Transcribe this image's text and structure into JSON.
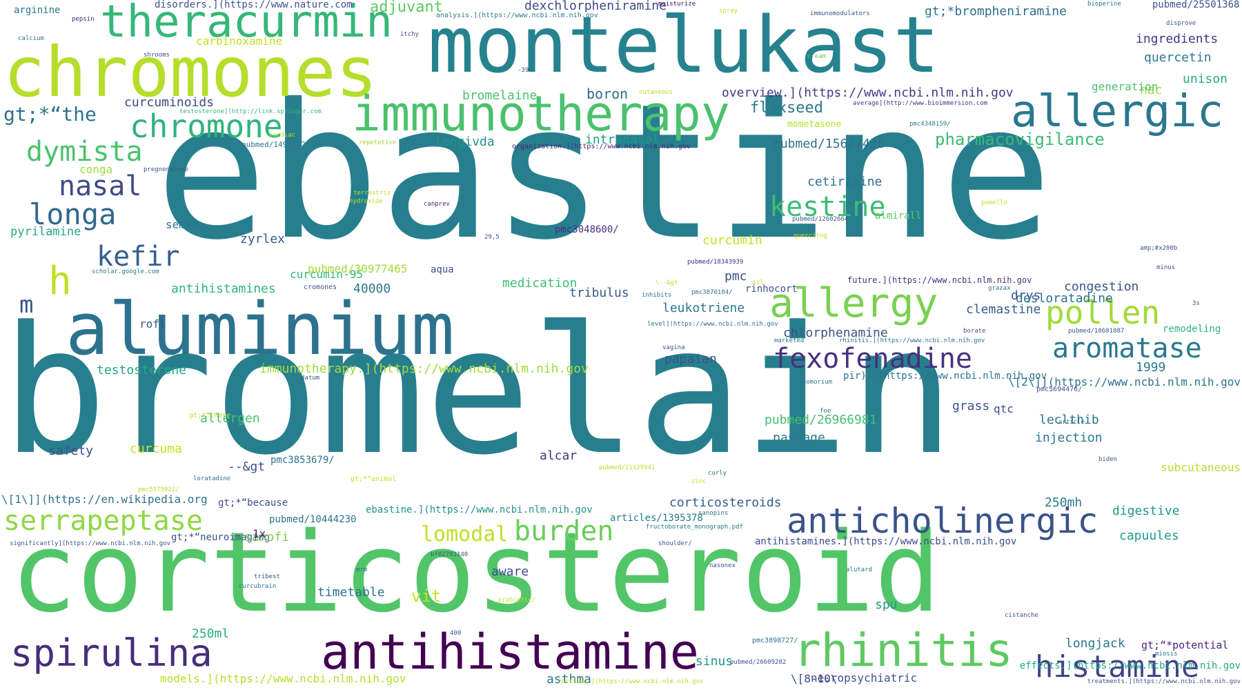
{
  "words": [
    {
      "text": "ebastine",
      "color": "#277f8e"
    },
    {
      "text": "bromelain",
      "color": "#277f8e"
    },
    {
      "text": "corticosteroid",
      "color": "#52c569"
    },
    {
      "text": "montelukast",
      "color": "#26828e"
    },
    {
      "text": "aluminium",
      "color": "#2c728e"
    },
    {
      "text": "chromones",
      "color": "#b5de2b"
    },
    {
      "text": "immunotherapy",
      "color": "#4ac16d"
    },
    {
      "text": "antihistamine",
      "color": "#440154"
    },
    {
      "text": "theracurmin",
      "color": "#35b779"
    },
    {
      "text": "allergic",
      "color": "#2a788e"
    },
    {
      "text": "rhinitis",
      "color": "#5ec962"
    },
    {
      "text": "anticholinergic",
      "color": "#3b528b"
    },
    {
      "text": "spirulina",
      "color": "#472d7b"
    },
    {
      "text": "allergy",
      "color": "#7ad151"
    },
    {
      "text": "chromone",
      "color": "#2fb47c"
    },
    {
      "text": "histamine",
      "color": "#414487"
    },
    {
      "text": "fexofenadine",
      "color": "#46327e"
    },
    {
      "text": "serrapeptase",
      "color": "#8fd744"
    },
    {
      "text": "pollen",
      "color": "#a0da39"
    },
    {
      "text": "aromatase",
      "color": "#2a788e"
    },
    {
      "text": "kestine",
      "color": "#3dbc74"
    },
    {
      "text": "longa",
      "color": "#31688e"
    },
    {
      "text": "dymista",
      "color": "#4ac16d"
    },
    {
      "text": "nasal",
      "color": "#3e4a89"
    },
    {
      "text": "burden",
      "color": "#6ccd5a"
    },
    {
      "text": "kefir",
      "color": "#355f8d"
    },
    {
      "text": "h",
      "color": "#c2df23"
    },
    {
      "text": "m",
      "color": "#38588c"
    },
    {
      "text": "lomodal",
      "color": "#c2df23"
    },
    {
      "text": "gt;*“the",
      "color": "#2c728e"
    },
    {
      "text": "pharmacovigilance",
      "color": "#3bbb75"
    },
    {
      "text": "flaxseed",
      "color": "#2a788e"
    },
    {
      "text": "adjuvant",
      "color": "#5ec962"
    },
    {
      "text": "dexchlorpheniramine",
      "color": "#3e4a89"
    },
    {
      "text": "gt;*brompheniramine",
      "color": "#2d708e"
    },
    {
      "text": "ingredients",
      "color": "#453581"
    },
    {
      "text": "quercetin",
      "color": "#2a788e"
    },
    {
      "text": "unison",
      "color": "#25ac82"
    },
    {
      "text": "nac",
      "color": "#9bd93c"
    },
    {
      "text": "boron",
      "color": "#2e6e8e"
    },
    {
      "text": "bromelaine",
      "color": "#4ac16d"
    },
    {
      "text": "overview.](https://www.ncbi.nlm.nih.gov",
      "color": "#443a83"
    },
    {
      "text": "curcuminoids",
      "color": "#3e4a89"
    },
    {
      "text": "longivda",
      "color": "#21918c"
    },
    {
      "text": "intranasal",
      "color": "#1f988b"
    },
    {
      "text": "pubmed/15627436",
      "color": "#2d708e"
    },
    {
      "text": "cetirizine",
      "color": "#2c728e"
    },
    {
      "text": "zyrlex",
      "color": "#38588c"
    },
    {
      "text": "pyrilamine",
      "color": "#22a785"
    },
    {
      "text": "antihistamines",
      "color": "#2fb47c"
    },
    {
      "text": "40000",
      "color": "#2a788e"
    },
    {
      "text": "medication",
      "color": "#3dbc74"
    },
    {
      "text": "tribulus",
      "color": "#365c8d"
    },
    {
      "text": "pmc",
      "color": "#3b528b"
    },
    {
      "text": "leukotriene",
      "color": "#2a788e"
    },
    {
      "text": "chlorphenamine",
      "color": "#3b528b"
    },
    {
      "text": "congestion",
      "color": "#3b528b"
    },
    {
      "text": "drys",
      "color": "#39568c"
    },
    {
      "text": "clemastine",
      "color": "#365c8d"
    },
    {
      "text": "testosterone",
      "color": "#22a785"
    },
    {
      "text": "papaian",
      "color": "#3b528b"
    },
    {
      "text": "immunotherapy.](https://www.ncbi.nlm.nih.gov",
      "color": "#a0da39"
    },
    {
      "text": "allergen",
      "color": "#4ac16d"
    },
    {
      "text": "safety",
      "color": "#3b528b"
    },
    {
      "text": "--&gt",
      "color": "#3b528b"
    },
    {
      "text": "pubmed/26966981",
      "color": "#44bf70"
    },
    {
      "text": "passage",
      "color": "#2a788e"
    },
    {
      "text": "grass",
      "color": "#3b528b"
    },
    {
      "text": "qtc",
      "color": "#3e4a89"
    },
    {
      "text": "leclthib",
      "color": "#2a788e"
    },
    {
      "text": "injection",
      "color": "#2a788e"
    },
    {
      "text": "digestive",
      "color": "#1f988b"
    },
    {
      "text": "capuules",
      "color": "#1f988b"
    },
    {
      "text": "timetable",
      "color": "#2c728e"
    },
    {
      "text": "vit",
      "color": "#c8e020"
    },
    {
      "text": "aware",
      "color": "#3e4a89"
    },
    {
      "text": "asthma",
      "color": "#2a788e"
    },
    {
      "text": "spu",
      "color": "#1f988b"
    },
    {
      "text": "250ml",
      "color": "#25ac82"
    },
    {
      "text": "longjack",
      "color": "#2a788e"
    },
    {
      "text": "gt;“*potential",
      "color": "#482677"
    },
    {
      "text": "neuropsychiatric",
      "color": "#3b528b"
    },
    {
      "text": "models.](https://www.ncbi.nlm.nih.gov",
      "color": "#b5de2b"
    },
    {
      "text": "gt;*“because",
      "color": "#3e4a89"
    },
    {
      "text": "gt;*“neuroimaging",
      "color": "#3b528b"
    },
    {
      "text": "pubmed/10444230",
      "color": "#2c728e"
    },
    {
      "text": "articles/1395378",
      "color": "#2a788e"
    },
    {
      "text": "ebastine.](https://www.ncbi.nlm.nih.gov",
      "color": "#21918c"
    },
    {
      "text": "antihistamines.](https://www.ncbi.nlm.nih.gov",
      "color": "#3e4a89"
    },
    {
      "text": "future.](https://www.ncbi.nlm.nih.gov",
      "color": "#46327e"
    },
    {
      "text": "pir).](https://www.ncbi.nlm.nih.gov",
      "color": "#2c728e"
    },
    {
      "text": "1999",
      "color": "#2a788e"
    },
    {
      "text": "remodeling",
      "color": "#2fb47c"
    },
    {
      "text": "rinhocort",
      "color": "#3b528b"
    },
    {
      "text": "almirall",
      "color": "#5ec962"
    },
    {
      "text": "mometasone",
      "color": "#b5de2b"
    },
    {
      "text": "disorders.](https://www.nature.com",
      "color": "#3b528b"
    },
    {
      "text": "arginine",
      "color": "#2c728e"
    },
    {
      "text": "carbinoxamine",
      "color": "#c2df23"
    },
    {
      "text": "conga",
      "color": "#a0da39"
    },
    {
      "text": "semen",
      "color": "#2c728e"
    },
    {
      "text": "curcumin-95",
      "color": "#2fb47c"
    },
    {
      "text": "pubmed/30977465",
      "color": "#a0da39"
    },
    {
      "text": "curcumin",
      "color": "#c2df23"
    },
    {
      "text": "desloratadine",
      "color": "#2c728e"
    },
    {
      "text": "generation",
      "color": "#4ac16d"
    },
    {
      "text": "corticosteroids",
      "color": "#355f8d"
    },
    {
      "text": "alcar",
      "color": "#46327e"
    },
    {
      "text": "curcuma",
      "color": "#c8e020"
    },
    {
      "text": "sanofi",
      "color": "#7ad151"
    },
    {
      "text": "sinus",
      "color": "#1f988b"
    },
    {
      "text": "250mh",
      "color": "#2a788e"
    },
    {
      "text": "subcutaneous",
      "color": "#b5de2b"
    },
    {
      "text": "rofl",
      "color": "#3b528b"
    },
    {
      "text": "pmc3853679/",
      "color": "#2c728e"
    },
    {
      "text": "1x",
      "color": "#482677"
    },
    {
      "text": "pmc3048600/",
      "color": "#472d7b"
    },
    {
      "text": "\\[1\\]](https://en.wikipedia.org",
      "color": "#2c728e"
    },
    {
      "text": "\\[2\\]](https://www.ncbi.nlm.nih.gov",
      "color": "#2c728e"
    },
    {
      "text": "effects.](https://www.ncbi.nlm.nih.gov",
      "color": "#22a785"
    },
    {
      "text": "\\[8-10\\",
      "color": "#3e4a89"
    },
    {
      "text": "pubmed/25501368",
      "color": "#3b528b"
    },
    {
      "text": "moisturize",
      "color": "#440154"
    },
    {
      "text": "bioperine",
      "color": "#2c728e"
    },
    {
      "text": "immunomodulators",
      "color": "#3b528b"
    },
    {
      "text": "spray",
      "color": "#c8e020"
    },
    {
      "text": "pepsin",
      "color": "#482677"
    },
    {
      "text": "calcium",
      "color": "#2c728e"
    },
    {
      "text": "shrooms",
      "color": "#3b528b"
    },
    {
      "text": "itchy",
      "color": "#3b528b"
    },
    {
      "text": "analysis.](https://www.ncbi.nlm.nih.gov",
      "color": "#2a788e"
    },
    {
      "text": "cream",
      "color": "#5ec962"
    },
    {
      "text": "-39",
      "color": "#3b528b"
    },
    {
      "text": "cutaneous",
      "color": "#b5de2b"
    },
    {
      "text": "testosterone](http://link.springer.com",
      "color": "#35b779"
    },
    {
      "text": "pubmed/14984820",
      "color": "#2a788e"
    },
    {
      "text": "repetetive",
      "color": "#a0da39"
    },
    {
      "text": "cardiac",
      "color": "#b5de2b"
    },
    {
      "text": "organization.](https://www.ncbi.nlm.nih.gov",
      "color": "#482677"
    },
    {
      "text": "pmc4348159/",
      "color": "#2a788e"
    },
    {
      "text": "average](http://www.bioimmersion.com",
      "color": "#46327e"
    },
    {
      "text": "disprove",
      "color": "#3b528b"
    },
    {
      "text": "pregnenalone",
      "color": "#3b528b"
    },
    {
      "text": "canprev",
      "color": "#482677"
    },
    {
      "text": "terrestris",
      "color": "#b5de2b"
    },
    {
      "text": "hydroxide",
      "color": "#b5de2b"
    },
    {
      "text": "29,5",
      "color": "#3b528b"
    },
    {
      "text": "pubmed/12602664",
      "color": "#3b528b"
    },
    {
      "text": "quercitng",
      "color": "#c8e020"
    },
    {
      "text": "pomello",
      "color": "#c8e020"
    },
    {
      "text": "amp;#x200b",
      "color": "#3b528b"
    },
    {
      "text": "minus",
      "color": "#3b528b"
    },
    {
      "text": "scholar.google.com",
      "color": "#2a788e"
    },
    {
      "text": "cromones",
      "color": "#3b528b"
    },
    {
      "text": "pubmed/18343939",
      "color": "#482677"
    },
    {
      "text": "aqua",
      "color": "#3b528b"
    },
    {
      "text": "pmc3870104/",
      "color": "#2c728e"
    },
    {
      "text": "inhibits",
      "color": "#2c728e"
    },
    {
      "text": "\\--&gt",
      "color": "#b5de2b"
    },
    {
      "text": "oil",
      "color": "#c8e020"
    },
    {
      "text": "grazax",
      "color": "#2c728e"
    },
    {
      "text": "3s",
      "color": "#3b528b"
    },
    {
      "text": "level](https://www.ncbi.nlm.nih.gov",
      "color": "#2c728e"
    },
    {
      "text": "pubmed/18681087",
      "color": "#3b528b"
    },
    {
      "text": "borate",
      "color": "#3b528b"
    },
    {
      "text": "marketed",
      "color": "#2a788e"
    },
    {
      "text": "rhinitis.](https://www.ncbi.nlm.nih.gov",
      "color": "#2c728e"
    },
    {
      "text": "vagina",
      "color": "#3b528b"
    },
    {
      "text": "datum",
      "color": "#3b528b"
    },
    {
      "text": "cynomorium",
      "color": "#2a788e"
    },
    {
      "text": "pmc5694476/",
      "color": "#3b528b"
    },
    {
      "text": "gt;*“there",
      "color": "#c2df23"
    },
    {
      "text": "gt;*“animal",
      "color": "#c8e020"
    },
    {
      "text": "foe",
      "color": "#2c728e"
    },
    {
      "text": "article",
      "color": "#2c728e"
    },
    {
      "text": "biden",
      "color": "#3b528b"
    },
    {
      "text": "loratadine",
      "color": "#2c728e"
    },
    {
      "text": "pmc5579921/",
      "color": "#b5de2b"
    },
    {
      "text": "pubmed/21129941",
      "color": "#b5de2b"
    },
    {
      "text": "curly",
      "color": "#2c728e"
    },
    {
      "text": "zinc",
      "color": "#c8e020"
    },
    {
      "text": "sanopins",
      "color": "#2c728e"
    },
    {
      "text": "fructoborate_monograph.pdf",
      "color": "#2a788e"
    },
    {
      "text": "significantly](https://www.ncbi.nlm.nih.gov",
      "color": "#3b528b"
    },
    {
      "text": "shoulder/",
      "color": "#3b528b"
    },
    {
      "text": "bf02783140",
      "color": "#3b528b"
    },
    {
      "text": "tribest",
      "color": "#3b528b"
    },
    {
      "text": "mrm",
      "color": "#2c728e"
    },
    {
      "text": "nasonex",
      "color": "#3b528b"
    },
    {
      "text": "alutard",
      "color": "#2c728e"
    },
    {
      "text": "curcubrain",
      "color": "#2c728e"
    },
    {
      "text": "probiotic/",
      "color": "#c8e020"
    },
    {
      "text": "cistanche",
      "color": "#3b528b"
    },
    {
      "text": "400",
      "color": "#3b528b"
    },
    {
      "text": "pmc3898727/",
      "color": "#2c728e"
    },
    {
      "text": "pubmed/26609282",
      "color": "#3b528b"
    },
    {
      "text": "miosis",
      "color": "#2c728e"
    },
    {
      "text": "verified.](https://www.ncbi.nlm.nih.gov",
      "color": "#b5de2b"
    },
    {
      "text": "treatments.](https://www.ncbi.nlm.nih.gov",
      "color": "#3b528b"
    }
  ]
}
